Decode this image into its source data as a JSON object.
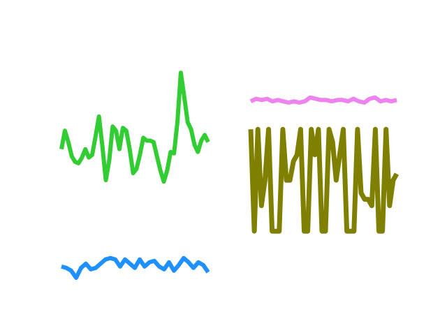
{
  "chart_data": [
    {
      "type": "line",
      "title": "",
      "xlabel": "",
      "ylabel": "",
      "axes_visible": false,
      "grid": false,
      "ylim": [
        -0.5,
        1.3
      ],
      "series": [
        {
          "color": "#32cd32",
          "values": [
            0.53,
            0.66,
            0.58,
            0.48,
            0.44,
            0.43,
            0.47,
            0.53,
            0.47,
            0.49,
            0.62,
            0.76,
            0.55,
            0.31,
            0.45,
            0.69,
            0.66,
            0.53,
            0.68,
            0.66,
            0.53,
            0.36,
            0.39,
            0.49,
            0.61,
            0.59,
            0.59,
            0.58,
            0.48,
            0.38,
            0.3,
            0.38,
            0.51,
            0.5,
            0.72,
            1.07,
            0.9,
            0.72,
            0.67,
            0.56,
            0.51,
            0.59,
            0.63,
            0.58
          ]
        },
        {
          "color": "#1e90ff",
          "values": [
            -0.3,
            -0.31,
            -0.33,
            -0.38,
            -0.31,
            -0.28,
            -0.32,
            -0.31,
            -0.28,
            -0.25,
            -0.24,
            -0.25,
            -0.3,
            -0.25,
            -0.28,
            -0.31,
            -0.25,
            -0.3,
            -0.27,
            -0.26,
            -0.3,
            -0.32,
            -0.27,
            -0.33,
            -0.29,
            -0.24,
            -0.27,
            -0.31,
            -0.27,
            -0.29,
            -0.34
          ]
        }
      ]
    },
    {
      "type": "line",
      "title": "",
      "xlabel": "",
      "ylabel": "",
      "axes_visible": false,
      "grid": false,
      "ylim": [
        -0.5,
        1.5
      ],
      "series": [
        {
          "color": "#ee82ee",
          "values": [
            1.02,
            1.04,
            1.03,
            1.04,
            1.02,
            1.03,
            1.02,
            1.01,
            1.02,
            1.01,
            1.02,
            1.05,
            1.04,
            1.03,
            1.03,
            1.02,
            1.03,
            1.03,
            1.02,
            1.04,
            1.02,
            1.01,
            1.04,
            1.05,
            1.02,
            1.03,
            1.02,
            1.03
          ]
        },
        {
          "color": "#808000",
          "values": [
            0.8,
            0.0,
            0.8,
            0.2,
            0.4,
            0.8,
            0.0,
            0.0,
            0.0,
            0.8,
            0.4,
            0.4,
            0.55,
            0.6,
            0.8,
            0.0,
            0.0,
            0.8,
            0.6,
            0.8,
            0.0,
            0.0,
            0.8,
            0.7,
            0.4,
            0.6,
            0.8,
            0.0,
            0.0,
            0.0,
            0.8,
            0.3,
            0.25,
            0.25,
            0.2,
            0.8,
            0.0,
            0.0,
            0.8,
            0.2,
            0.4,
            0.45
          ]
        }
      ]
    }
  ]
}
